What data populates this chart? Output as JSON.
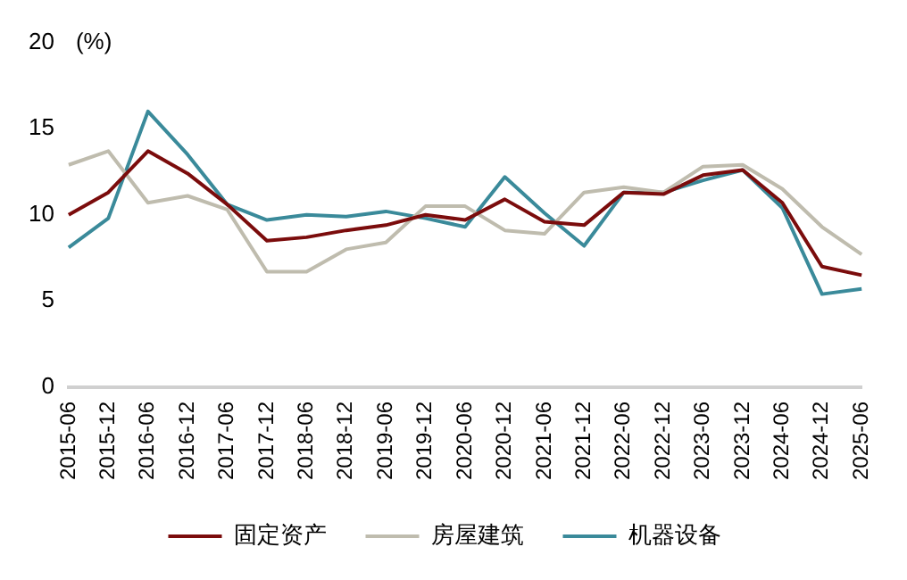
{
  "chart_data": {
    "type": "line",
    "ylabel": "(%)",
    "categories": [
      "2015-06",
      "2015-12",
      "2016-06",
      "2016-12",
      "2017-06",
      "2017-12",
      "2018-06",
      "2018-12",
      "2019-06",
      "2019-12",
      "2020-06",
      "2020-12",
      "2021-06",
      "2021-12",
      "2022-06",
      "2022-12",
      "2023-06",
      "2023-12",
      "2024-06",
      "2024-12",
      "2025-06"
    ],
    "series": [
      {
        "name": "固定资产",
        "color": "#7b0c0c",
        "values": [
          10.0,
          11.3,
          13.7,
          12.4,
          10.6,
          8.5,
          8.7,
          9.1,
          9.4,
          10.0,
          9.7,
          10.9,
          9.6,
          9.4,
          11.3,
          11.2,
          12.3,
          12.6,
          10.7,
          7.0,
          6.5
        ]
      },
      {
        "name": "房屋建筑",
        "color": "#bfbcae",
        "values": [
          12.9,
          13.7,
          10.7,
          11.1,
          10.3,
          6.7,
          6.7,
          8.0,
          8.4,
          10.5,
          10.5,
          9.1,
          8.9,
          11.3,
          11.6,
          11.3,
          12.8,
          12.9,
          11.5,
          9.3,
          7.7
        ]
      },
      {
        "name": "机器设备",
        "color": "#3a8a9a",
        "values": [
          8.1,
          9.8,
          16.0,
          13.5,
          10.6,
          9.7,
          10.0,
          9.9,
          10.2,
          9.8,
          9.3,
          12.2,
          10.1,
          8.2,
          11.3,
          11.3,
          12.0,
          12.6,
          10.4,
          5.4,
          5.7
        ]
      }
    ],
    "ylim": [
      0,
      20
    ],
    "yticks": [
      0,
      5,
      10,
      15,
      20
    ],
    "grid": false,
    "legend": "bottom",
    "marker": "none",
    "line_style": "solid"
  }
}
